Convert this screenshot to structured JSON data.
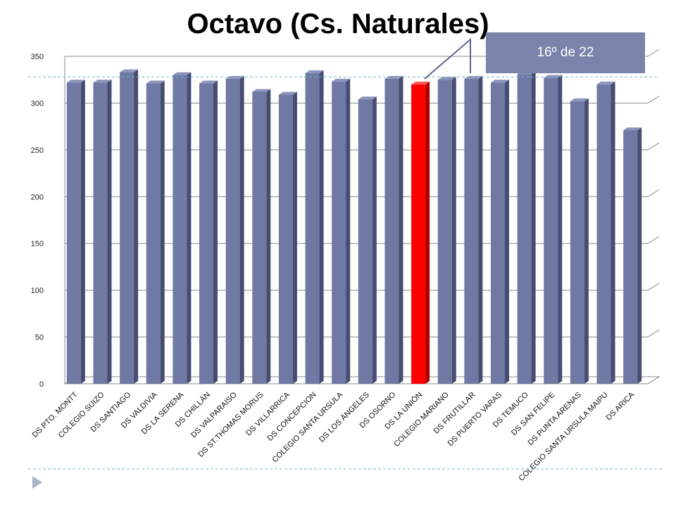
{
  "slide": {
    "title": "Octavo (Cs. Naturales)",
    "callout": "16º de 22",
    "bullet_icon": "triangle-bullet-icon"
  },
  "colors": {
    "bar": "#6f79a3",
    "bar_top": "#8b94bb",
    "bar_side": "#454d72",
    "highlight": "#ff0000",
    "highlight_top": "#ff5a5a",
    "highlight_side": "#b00000",
    "grid": "#8a8a8a",
    "reference_line": "#7fb3c4",
    "callout_bg": "#7b83aa"
  },
  "chart_data": {
    "type": "bar",
    "title": "Octavo (Cs. Naturales)",
    "categories": [
      "DS PTO. MONTT",
      "COLEGIO SUIZO",
      "DS SANTIAGO",
      "DS VALDIVIA",
      "DS LA SERENA",
      "DS CHILLÁN",
      "DS VALPARAISO",
      "DS ST.THOMAS MORUS",
      "DS VILLARRICA",
      "DS CONCEPCION",
      "COLEGIO SANTA URSULA",
      "DS LOS ÁNGELES",
      "DS OSORNO",
      "DS LA UNIÓN",
      "COLEGIO MARIANO",
      "DS FRUTILLAR",
      "DS PUERTO VARAS",
      "DS TEMUCO",
      "DS SAN FELIPE",
      "DS PUNTA ARENAS",
      "COLEGIO SANTA URSULA MAIPU",
      "DS ARICA"
    ],
    "values": [
      322,
      322,
      333,
      321,
      330,
      321,
      326,
      312,
      309,
      332,
      323,
      304,
      326,
      320,
      325,
      326,
      322,
      331,
      327,
      302,
      320,
      271
    ],
    "highlight_index": 13,
    "reference_value": 328,
    "ylim": [
      0,
      350
    ],
    "yticks": [
      0,
      50,
      100,
      150,
      200,
      250,
      300,
      350
    ],
    "xlabel": "",
    "ylabel": "",
    "grid": true,
    "legend": false,
    "bar_style": "3d"
  }
}
